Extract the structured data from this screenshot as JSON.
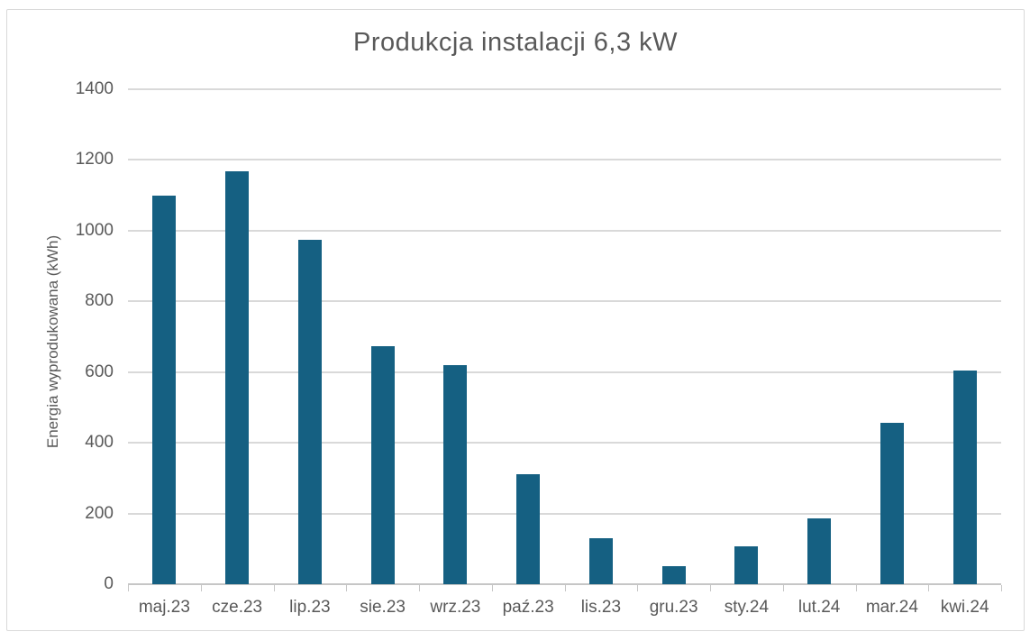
{
  "chart_data": {
    "type": "bar",
    "title": "Produkcja instalacji 6,3 kW",
    "xlabel": "",
    "ylabel": "Energia wyprodukowana (kWh)",
    "categories": [
      "maj.23",
      "cze.23",
      "lip.23",
      "sie.23",
      "wrz.23",
      "paź.23",
      "lis.23",
      "gru.23",
      "sty.24",
      "lut.24",
      "mar.24",
      "kwi.24"
    ],
    "values": [
      1098,
      1169,
      973,
      672,
      620,
      312,
      131,
      52,
      106,
      185,
      457,
      604
    ],
    "ylim": [
      0,
      1400
    ],
    "yticks": [
      0,
      200,
      400,
      600,
      800,
      1000,
      1200,
      1400
    ],
    "grid": true,
    "legend": false,
    "colors": {
      "bar": "#156082",
      "gridline": "#d9d9d9",
      "axis_line": "#c6c6c6",
      "text": "#595959",
      "frame_border": "#d9d9d9",
      "background": "#ffffff"
    }
  }
}
